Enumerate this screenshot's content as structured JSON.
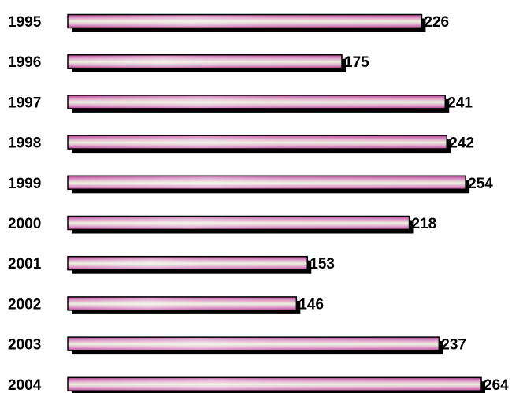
{
  "chart_data": {
    "type": "bar",
    "orientation": "horizontal",
    "categories": [
      "1995",
      "1996",
      "1997",
      "1998",
      "1999",
      "2000",
      "2001",
      "2002",
      "2003",
      "2004"
    ],
    "values": [
      226,
      175,
      241,
      242,
      254,
      218,
      153,
      146,
      237,
      264
    ],
    "title": "",
    "xlabel": "",
    "ylabel": "",
    "grid": false,
    "legend": "none",
    "colors": {
      "bar_edge": "#b0428f",
      "bar_mid": "#e2a3cd",
      "bar_center": "#e9f3dc",
      "outline": "#000000",
      "shadow": "#000000"
    }
  }
}
